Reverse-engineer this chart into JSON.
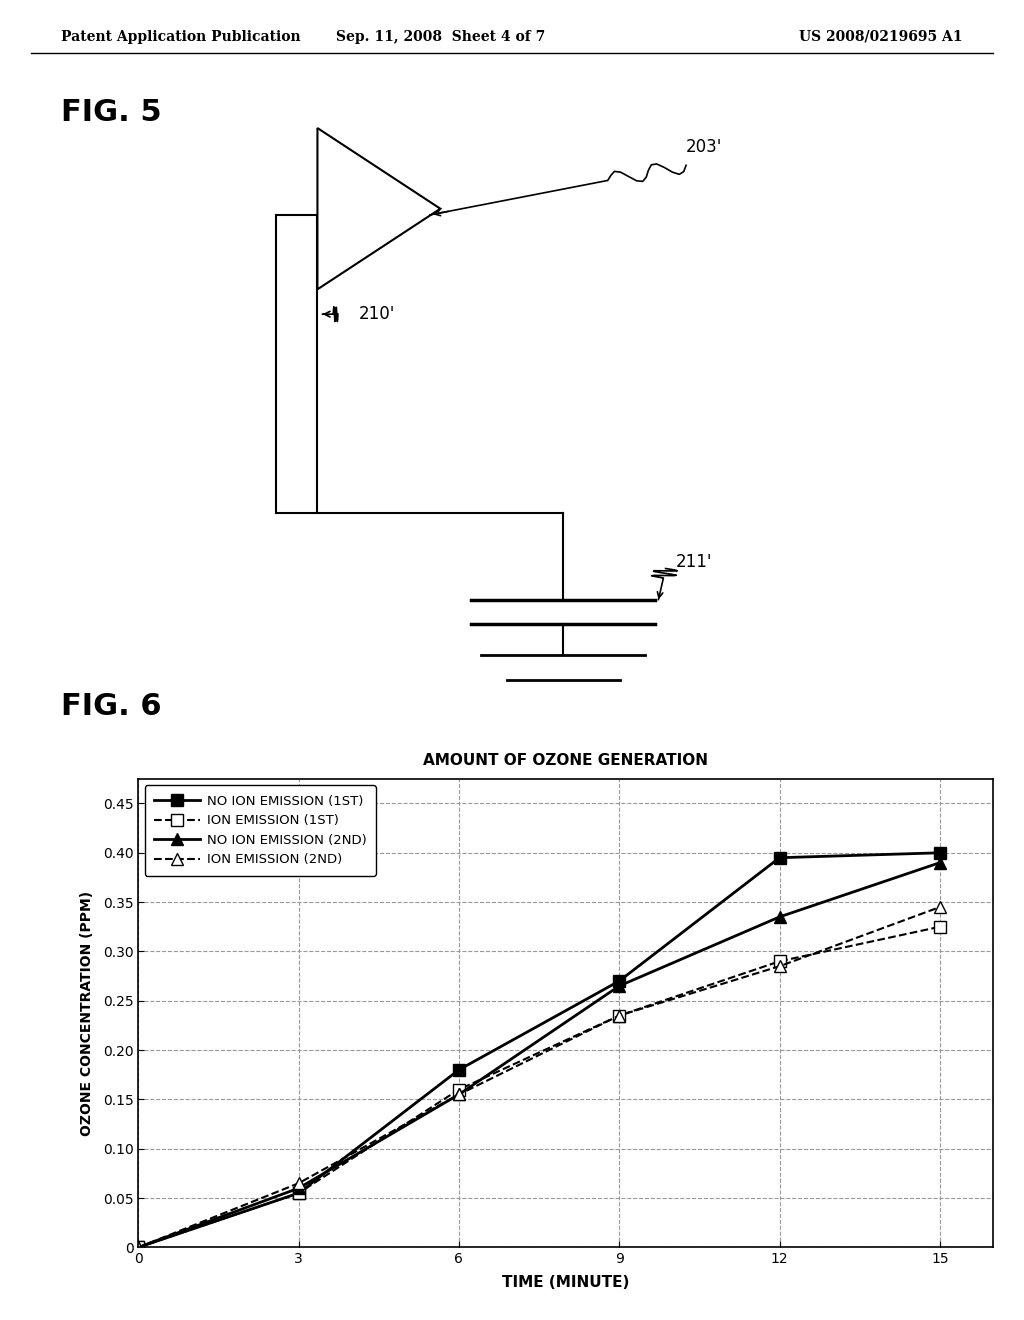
{
  "header_left": "Patent Application Publication",
  "header_center": "Sep. 11, 2008  Sheet 4 of 7",
  "header_right": "US 2008/0219695 A1",
  "fig5_label": "FIG. 5",
  "fig6_label": "FIG. 6",
  "label_203": "203'",
  "label_210": "210'",
  "label_211": "211'",
  "chart_title": "AMOUNT OF OZONE GENERATION",
  "xlabel": "TIME (MINUTE)",
  "ylabel": "OZONE CONCENTRATION (PPM)",
  "xlim": [
    0,
    16
  ],
  "ylim": [
    0,
    0.475
  ],
  "xticks": [
    0,
    3,
    6,
    9,
    12,
    15
  ],
  "yticks": [
    0,
    0.05,
    0.1,
    0.15,
    0.2,
    0.25,
    0.3,
    0.35,
    0.4,
    0.45
  ],
  "series": [
    {
      "label": "NO ION EMISSION (1ST)",
      "x": [
        0,
        3,
        6,
        9,
        12,
        15
      ],
      "y": [
        0,
        0.055,
        0.18,
        0.27,
        0.395,
        0.4
      ],
      "linestyle": "solid",
      "marker": "s",
      "marker_filled": true,
      "linewidth": 2.0
    },
    {
      "label": "ION EMISSION (1ST)",
      "x": [
        0,
        3,
        6,
        9,
        12,
        15
      ],
      "y": [
        0,
        0.055,
        0.16,
        0.235,
        0.29,
        0.325
      ],
      "linestyle": "dashed",
      "marker": "s",
      "marker_filled": false,
      "linewidth": 1.5
    },
    {
      "label": "NO ION EMISSION (2ND)",
      "x": [
        0,
        3,
        6,
        9,
        12,
        15
      ],
      "y": [
        0,
        0.06,
        0.155,
        0.265,
        0.335,
        0.39
      ],
      "linestyle": "solid",
      "marker": "^",
      "marker_filled": true,
      "linewidth": 2.0
    },
    {
      "label": "ION EMISSION (2ND)",
      "x": [
        0,
        3,
        6,
        9,
        12,
        15
      ],
      "y": [
        0,
        0.065,
        0.155,
        0.235,
        0.285,
        0.345
      ],
      "linestyle": "dashed",
      "marker": "^",
      "marker_filled": false,
      "linewidth": 1.5
    }
  ],
  "background_color": "#ffffff",
  "grid_color": "#999999",
  "grid_linestyle": "--"
}
